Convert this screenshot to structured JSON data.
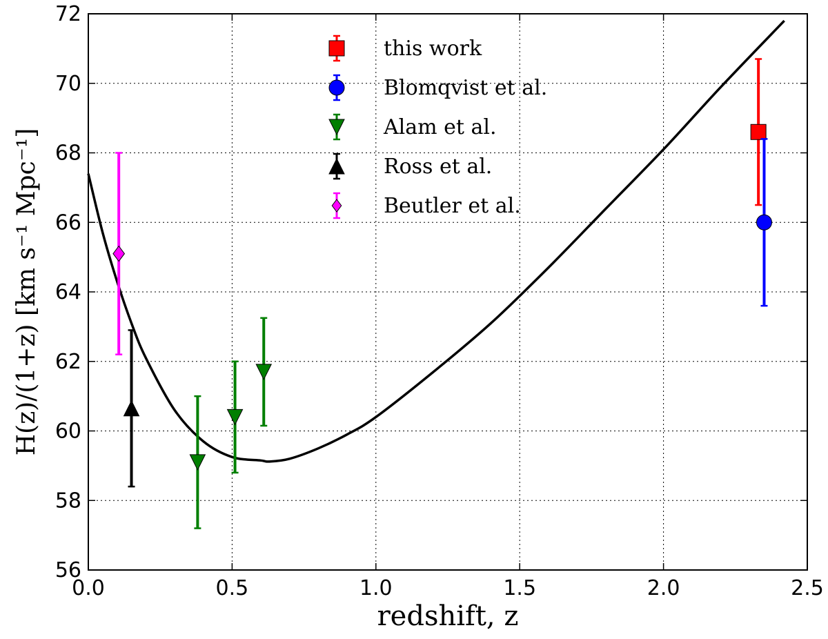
{
  "chart_data": {
    "type": "scatter",
    "xlabel": "redshift, z",
    "ylabel": "H(z)/(1+z)  [km s⁻¹ Mpc⁻¹]",
    "xlim": [
      0.0,
      2.5
    ],
    "ylim": [
      56,
      72
    ],
    "xticks": [
      "0.0",
      "0.5",
      "1.0",
      "1.5",
      "2.0",
      "2.5"
    ],
    "yticks": [
      "56",
      "58",
      "60",
      "62",
      "64",
      "66",
      "68",
      "70",
      "72"
    ],
    "xtick_values": [
      0.0,
      0.5,
      1.0,
      1.5,
      2.0,
      2.5
    ],
    "ytick_values": [
      56,
      58,
      60,
      62,
      64,
      66,
      68,
      70,
      72
    ],
    "grid": true,
    "legend_placement": "top-center",
    "model_curve": {
      "color": "#000000",
      "x": [
        0.0,
        0.05,
        0.1,
        0.15,
        0.2,
        0.3,
        0.4,
        0.5,
        0.6,
        0.63,
        0.7,
        0.8,
        0.9,
        1.0,
        1.2,
        1.4,
        1.6,
        1.8,
        2.0,
        2.2,
        2.42
      ],
      "y": [
        67.4,
        65.7,
        64.3,
        63.1,
        62.1,
        60.6,
        59.7,
        59.25,
        59.15,
        59.12,
        59.2,
        59.5,
        59.9,
        60.4,
        61.7,
        63.1,
        64.7,
        66.4,
        68.1,
        69.9,
        71.8
      ]
    },
    "series": [
      {
        "name": "this work",
        "color": "#ff0000",
        "marker": "square",
        "x": [
          2.33
        ],
        "y": [
          68.6
        ],
        "yerr": [
          2.1
        ]
      },
      {
        "name": "Blomqvist et al.",
        "color": "#0000ff",
        "marker": "circle",
        "x": [
          2.35
        ],
        "y": [
          66.0
        ],
        "yerr": [
          2.4
        ]
      },
      {
        "name": "Alam et al.",
        "color": "#007f00",
        "marker": "triangle-down",
        "x": [
          0.38,
          0.51,
          0.61
        ],
        "y": [
          59.1,
          60.4,
          61.7
        ],
        "yerr": [
          1.9,
          1.6,
          1.55
        ]
      },
      {
        "name": "Ross et al.",
        "color": "#000000",
        "marker": "triangle-up",
        "x": [
          0.15
        ],
        "y": [
          60.65
        ],
        "yerr": [
          2.25
        ]
      },
      {
        "name": "Beutler et al.",
        "color": "#ff00ff",
        "marker": "diamond",
        "x": [
          0.106
        ],
        "y": [
          65.1
        ],
        "yerr": [
          2.9
        ]
      }
    ]
  }
}
